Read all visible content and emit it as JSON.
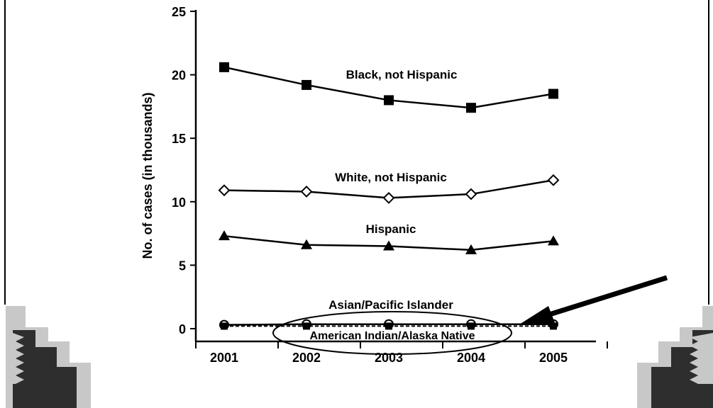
{
  "chart_data": {
    "type": "line",
    "title": "",
    "xlabel": "",
    "ylabel": "No. of cases (in thousands)",
    "ylim": [
      0,
      25
    ],
    "yticks": [
      "0",
      "5",
      "10",
      "15",
      "20",
      "25"
    ],
    "categories": [
      "2001",
      "2002",
      "2003",
      "2004",
      "2005"
    ],
    "series": [
      {
        "name": "Black, not Hispanic",
        "marker": "square",
        "values": [
          20.6,
          19.2,
          18.0,
          17.4,
          18.5
        ]
      },
      {
        "name": "White, not Hispanic",
        "marker": "diamond-open",
        "values": [
          10.9,
          10.8,
          10.3,
          10.6,
          11.7
        ]
      },
      {
        "name": "Hispanic",
        "marker": "triangle",
        "values": [
          7.3,
          6.6,
          6.5,
          6.2,
          6.9
        ]
      },
      {
        "name": "Asian/Pacific Islander",
        "marker": "circle-open",
        "values": [
          0.3,
          0.35,
          0.35,
          0.35,
          0.35
        ]
      },
      {
        "name": "American Indian/Alaska Native",
        "marker": "square",
        "line": "dashed",
        "values": [
          0.2,
          0.2,
          0.2,
          0.2,
          0.2
        ]
      }
    ],
    "colors": {
      "line": "#000000",
      "decoration_light": "#c8c8c8",
      "decoration_dark": "#2e2e2e"
    }
  }
}
